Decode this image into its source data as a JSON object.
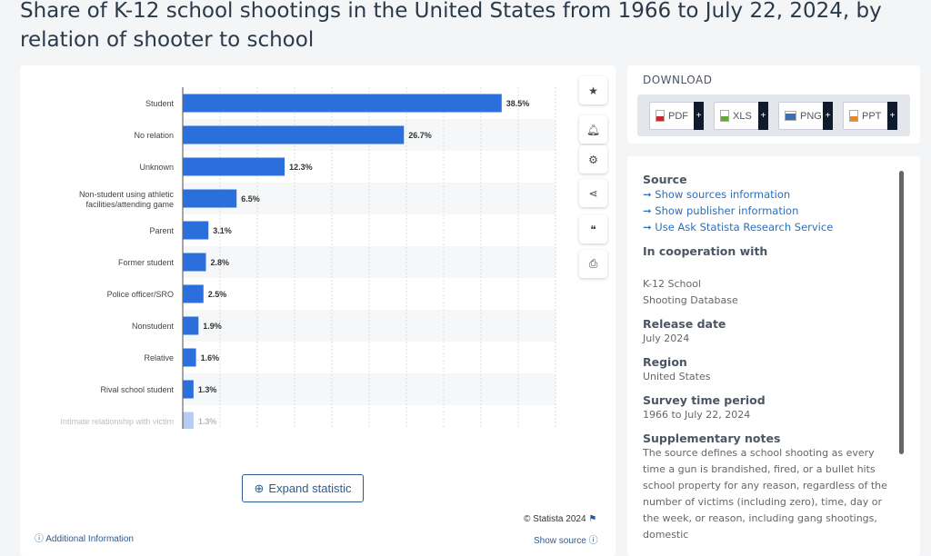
{
  "title": "Share of K-12 school shootings in the United States from 1966 to July 22, 2024, by relation of shooter to school",
  "chart_data": {
    "type": "bar",
    "orientation": "horizontal",
    "categories": [
      "Student",
      "No relation",
      "Unknown",
      "Non-student using athletic facilities/attending game",
      "Parent",
      "Former student",
      "Police officer/SRO",
      "Nonstudent",
      "Relative",
      "Rival school student",
      "Intimate relationship with victim"
    ],
    "values": [
      38.5,
      26.7,
      12.3,
      6.5,
      3.1,
      2.8,
      2.5,
      1.9,
      1.6,
      1.3,
      1.3
    ],
    "labels": [
      "38.5%",
      "26.7%",
      "12.3%",
      "6.5%",
      "3.1%",
      "2.8%",
      "2.5%",
      "1.9%",
      "1.6%",
      "1.3%",
      "1.3%"
    ],
    "xlim": [
      0,
      45
    ],
    "grid": true,
    "bar_color": "#2a6fdb",
    "unit": "%"
  },
  "tools": [
    "star-icon",
    "bell-icon",
    "gear-icon",
    "share-icon",
    "quote-icon",
    "print-icon"
  ],
  "expand_label": "Expand statistic",
  "footer": {
    "additional": "Additional Information",
    "copyright": "© Statista 2024",
    "show_source": "Show source"
  },
  "download": {
    "heading": "DOWNLOAD",
    "buttons": [
      {
        "label": "PDF",
        "color": "#c62828"
      },
      {
        "label": "XLS",
        "color": "#6aa53a"
      },
      {
        "label": "PNG",
        "color": "#3b6fb0"
      },
      {
        "label": "PPT",
        "color": "#e08a2e"
      }
    ]
  },
  "info": {
    "source_heading": "Source",
    "links": [
      "Show sources information",
      "Show publisher information",
      "Use Ask Statista Research Service"
    ],
    "coop_heading": "In cooperation with",
    "coop_value": [
      "K-12 School",
      "Shooting Database"
    ],
    "release_heading": "Release date",
    "release_value": "July 2024",
    "region_heading": "Region",
    "region_value": "United States",
    "period_heading": "Survey time period",
    "period_value": "1966 to July 22, 2024",
    "notes_heading": "Supplementary notes",
    "notes_value": "The source defines a school shooting as every time a gun is brandished, fired, or a bullet hits school property for any reason, regardless of the number of victims (including zero), time, day or the week, or reason, including gang shootings, domestic"
  }
}
